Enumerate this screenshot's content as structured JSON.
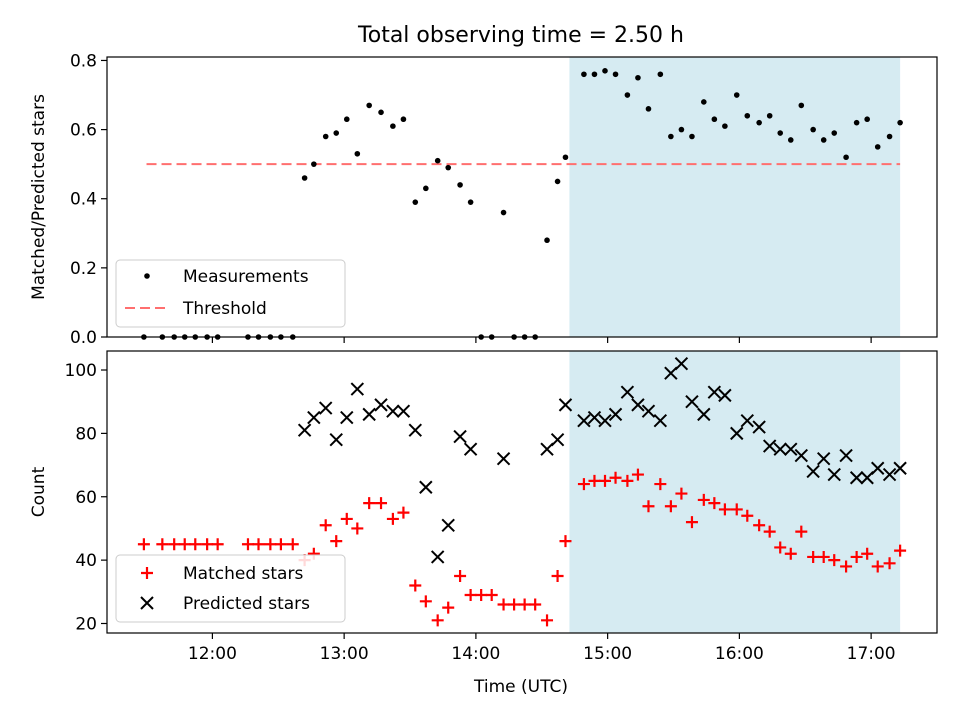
{
  "figure": {
    "title": "Total observing time = 2.50 h"
  },
  "chart_data": [
    {
      "type": "scatter",
      "ylabel": "Matched/Predicted stars",
      "xlabel": "",
      "xlim": [
        11.2,
        17.5
      ],
      "ylim": [
        0,
        0.81
      ],
      "yticks": [
        0,
        0.2,
        0.4,
        0.6,
        0.8
      ],
      "ytick_labels": [
        "0.0",
        "0.2",
        "0.4",
        "0.6",
        "0.8"
      ],
      "xticks": [
        12,
        13,
        14,
        15,
        16,
        17
      ],
      "show_xtick_labels": false,
      "shaded_span": {
        "x0": 14.71,
        "x1": 17.22,
        "color": "#add8e6"
      },
      "threshold": {
        "name": "Threshold",
        "value": 0.5,
        "x0": 11.5,
        "x1": 17.22,
        "color": "#ff6f6f"
      },
      "series": [
        {
          "name": "Measurements",
          "marker": "dot",
          "color": "#000000",
          "x": [
            11.48,
            11.62,
            11.71,
            11.79,
            11.87,
            11.96,
            12.04,
            12.27,
            12.35,
            12.44,
            12.52,
            12.61,
            12.7,
            12.77,
            12.86,
            12.94,
            13.02,
            13.1,
            13.19,
            13.28,
            13.37,
            13.45,
            13.54,
            13.62,
            13.71,
            13.79,
            13.88,
            13.96,
            14.04,
            14.12,
            14.21,
            14.29,
            14.37,
            14.45,
            14.54,
            14.62,
            14.68,
            14.82,
            14.9,
            14.98,
            15.06,
            15.15,
            15.23,
            15.31,
            15.4,
            15.48,
            15.56,
            15.64,
            15.73,
            15.81,
            15.89,
            15.98,
            16.06,
            16.15,
            16.23,
            16.31,
            16.39,
            16.47,
            16.56,
            16.64,
            16.72,
            16.81,
            16.89,
            16.97,
            17.05,
            17.14,
            17.22
          ],
          "y": [
            0,
            0,
            0,
            0,
            0,
            0,
            0,
            0,
            0,
            0,
            0,
            0,
            0.46,
            0.5,
            0.58,
            0.59,
            0.63,
            0.53,
            0.67,
            0.65,
            0.61,
            0.63,
            0.39,
            0.43,
            0.51,
            0.49,
            0.44,
            0.39,
            0,
            0,
            0.36,
            0,
            0,
            0,
            0.28,
            0.45,
            0.52,
            0.76,
            0.76,
            0.77,
            0.76,
            0.7,
            0.75,
            0.66,
            0.76,
            0.58,
            0.6,
            0.58,
            0.68,
            0.63,
            0.61,
            0.7,
            0.64,
            0.62,
            0.64,
            0.59,
            0.57,
            0.67,
            0.6,
            0.57,
            0.59,
            0.52,
            0.62,
            0.63,
            0.55,
            0.58,
            0.62
          ]
        }
      ],
      "legend": {
        "position": "lower-left",
        "entries": [
          "Measurements",
          "Threshold"
        ]
      }
    },
    {
      "type": "scatter",
      "ylabel": "Count",
      "xlabel": "Time (UTC)",
      "xlim": [
        11.2,
        17.5
      ],
      "ylim": [
        17,
        106
      ],
      "yticks": [
        20,
        40,
        60,
        80,
        100
      ],
      "ytick_labels": [
        "20",
        "40",
        "60",
        "80",
        "100"
      ],
      "xticks": [
        12,
        13,
        14,
        15,
        16,
        17
      ],
      "xtick_labels": [
        "12:00",
        "13:00",
        "14:00",
        "15:00",
        "16:00",
        "17:00"
      ],
      "shaded_span": {
        "x0": 14.71,
        "x1": 17.22,
        "color": "#add8e6"
      },
      "series": [
        {
          "name": "Matched stars",
          "marker": "plus",
          "color": "#ff0000",
          "x": [
            11.48,
            11.62,
            11.71,
            11.79,
            11.87,
            11.96,
            12.04,
            12.27,
            12.35,
            12.44,
            12.52,
            12.61,
            12.7,
            12.77,
            12.86,
            12.94,
            13.02,
            13.1,
            13.19,
            13.28,
            13.37,
            13.45,
            13.54,
            13.62,
            13.71,
            13.79,
            13.88,
            13.96,
            14.04,
            14.12,
            14.21,
            14.29,
            14.37,
            14.45,
            14.54,
            14.62,
            14.68,
            14.82,
            14.9,
            14.98,
            15.06,
            15.15,
            15.23,
            15.31,
            15.4,
            15.48,
            15.56,
            15.64,
            15.73,
            15.81,
            15.89,
            15.98,
            16.06,
            16.15,
            16.23,
            16.31,
            16.39,
            16.47,
            16.56,
            16.64,
            16.72,
            16.81,
            16.89,
            16.97,
            17.05,
            17.14,
            17.22
          ],
          "y": [
            45,
            45,
            45,
            45,
            45,
            45,
            45,
            45,
            45,
            45,
            45,
            45,
            40,
            42,
            51,
            46,
            53,
            50,
            58,
            58,
            53,
            55,
            32,
            27,
            21,
            25,
            35,
            29,
            29,
            29,
            26,
            26,
            26,
            26,
            21,
            35,
            46,
            64,
            65,
            65,
            66,
            65,
            67,
            57,
            64,
            57,
            61,
            52,
            59,
            58,
            56,
            56,
            54,
            51,
            49,
            44,
            42,
            49,
            41,
            41,
            40,
            38,
            41,
            42,
            38,
            39,
            43
          ]
        },
        {
          "name": "Predicted stars",
          "marker": "x",
          "color": "#000000",
          "x": [
            12.7,
            12.77,
            12.86,
            12.94,
            13.02,
            13.1,
            13.19,
            13.28,
            13.37,
            13.45,
            13.54,
            13.62,
            13.71,
            13.79,
            13.88,
            13.96,
            14.21,
            14.54,
            14.62,
            14.68,
            14.82,
            14.9,
            14.98,
            15.06,
            15.15,
            15.23,
            15.31,
            15.4,
            15.48,
            15.56,
            15.64,
            15.73,
            15.81,
            15.89,
            15.98,
            16.06,
            16.15,
            16.23,
            16.31,
            16.39,
            16.47,
            16.56,
            16.64,
            16.72,
            16.81,
            16.89,
            16.97,
            17.05,
            17.14,
            17.22
          ],
          "y": [
            81,
            85,
            88,
            78,
            85,
            94,
            86,
            89,
            87,
            87,
            81,
            63,
            41,
            51,
            79,
            75,
            72,
            75,
            78,
            89,
            84,
            85,
            84,
            86,
            93,
            89,
            87,
            84,
            99,
            102,
            90,
            86,
            93,
            92,
            80,
            84,
            82,
            76,
            75,
            75,
            73,
            68,
            72,
            67,
            73,
            66,
            66,
            69,
            67,
            69
          ]
        }
      ],
      "legend": {
        "position": "lower-left",
        "entries": [
          "Matched stars",
          "Predicted stars"
        ]
      }
    }
  ]
}
